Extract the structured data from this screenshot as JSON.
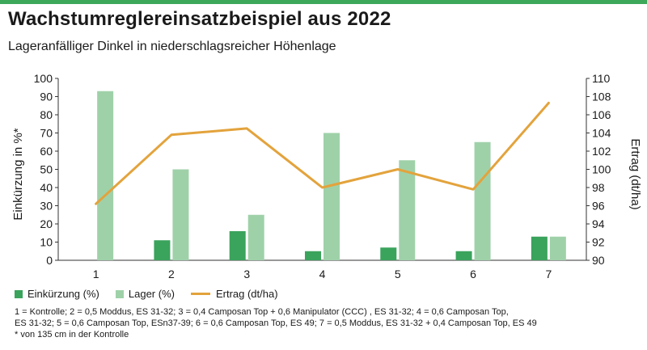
{
  "header": {
    "title": "Wachstumreglereinsatzbeispiel aus 2022",
    "subtitle": "Lageranfälliger Dinkel in niederschlagsreicher Höhenlage"
  },
  "colors": {
    "accent_rule": "#3da85a",
    "einkuerzung": "#3aa35c",
    "lager": "#9fd1a9",
    "ertrag": "#e3a33c"
  },
  "legend": {
    "einkuerzung": "Einkürzung (%)",
    "lager": "Lager (%)",
    "ertrag": "Ertrag (dt/ha)"
  },
  "footnote": {
    "line1": "1 = Kontrolle; 2 = 0,5 Moddus, ES 31-32; 3 = 0,4 Camposan Top + 0,6 Manipulator (CCC) , ES 31-32; 4 = 0,6 Camposan Top,",
    "line2": "ES 31-32; 5 = 0,6 Camposan Top, ESn37-39; 6 = 0,6 Camposan Top, ES 49; 7 = 0,5 Moddus, ES 31-32 + 0,4 Camposan Top, ES 49",
    "line3": "* von 135 cm in der Kontrolle"
  },
  "chart_data": {
    "type": "bar",
    "categories": [
      "1",
      "2",
      "3",
      "4",
      "5",
      "6",
      "7"
    ],
    "series": [
      {
        "name": "Einkürzung (%)",
        "type": "bar",
        "axis": "left",
        "values": [
          0,
          11,
          16,
          5,
          7,
          5,
          13
        ]
      },
      {
        "name": "Lager (%)",
        "type": "bar",
        "axis": "left",
        "values": [
          93,
          50,
          25,
          70,
          55,
          65,
          13
        ]
      },
      {
        "name": "Ertrag (dt/ha)",
        "type": "line",
        "axis": "right",
        "values": [
          96.2,
          103.8,
          104.5,
          98,
          100,
          97.8,
          107.3
        ]
      }
    ],
    "ylabel": "Einkürzung in %*",
    "y2label": "Ertrag (dt/ha)",
    "ylim": [
      0,
      100
    ],
    "y2lim": [
      90,
      110
    ],
    "yticks": [
      0,
      10,
      20,
      30,
      40,
      50,
      60,
      70,
      80,
      90,
      100
    ],
    "y2ticks": [
      90,
      92,
      94,
      96,
      98,
      100,
      102,
      104,
      106,
      108,
      110
    ],
    "grid": false,
    "legend_position": "bottom-left"
  }
}
